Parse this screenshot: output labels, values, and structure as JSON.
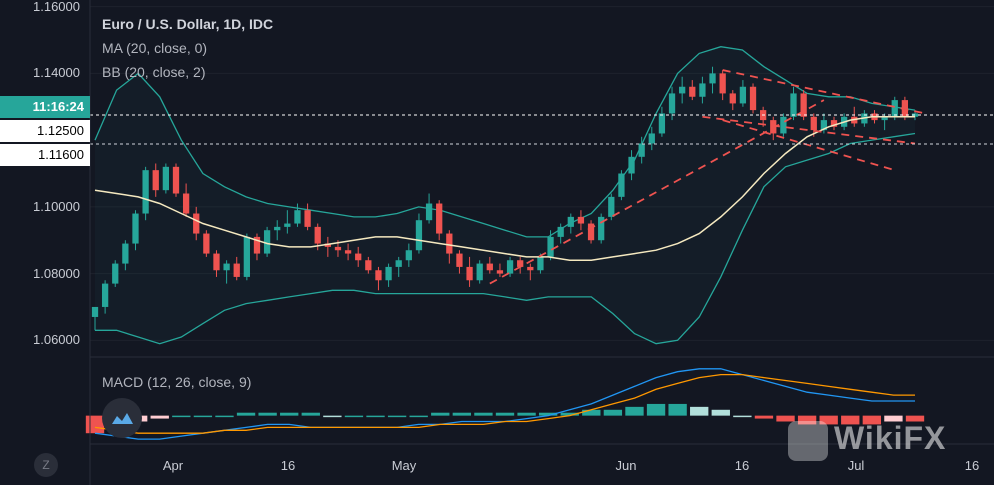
{
  "legend": {
    "title": "Euro / U.S. Dollar, 1D, IDC",
    "ma": "MA (20, close, 0)",
    "bb": "BB (20, close, 2)",
    "macd": "MACD (12, 26, close, 9)"
  },
  "price_axis": {
    "ticks": [
      "1.16000",
      "1.14000",
      "1.10000",
      "1.08000",
      "1.06000"
    ],
    "tick_values": [
      1.16,
      1.14,
      1.1,
      1.08,
      1.06
    ],
    "countdown": "11:16:24",
    "level_1": "1.12500",
    "level_2": "1.11600"
  },
  "time_axis": {
    "ticks": [
      "Apr",
      "16",
      "May",
      "Jun",
      "16",
      "Jul",
      "16"
    ]
  },
  "z_button": "Z",
  "watermark": "WikiFX",
  "colors": {
    "background": "#131722",
    "up": "#26a69a",
    "down": "#ef5350",
    "bb_band": "#26a69a",
    "ma": "#f5e9c0",
    "macd_line": "#2196f3",
    "signal_line": "#ff9800",
    "trendline": "#ef5350"
  },
  "chart_data": [
    {
      "type": "candlestick",
      "title": "Euro / U.S. Dollar, 1D, IDC",
      "ylim": [
        1.055,
        1.162
      ],
      "x_start": "Mar 25",
      "x_end": "Jul 9",
      "candles": [
        [
          1.067,
          1.07,
          1.063,
          1.07
        ],
        [
          1.07,
          1.078,
          1.068,
          1.077
        ],
        [
          1.077,
          1.084,
          1.076,
          1.083
        ],
        [
          1.083,
          1.09,
          1.081,
          1.089
        ],
        [
          1.089,
          1.099,
          1.087,
          1.098
        ],
        [
          1.098,
          1.112,
          1.096,
          1.111
        ],
        [
          1.111,
          1.113,
          1.103,
          1.105
        ],
        [
          1.105,
          1.113,
          1.104,
          1.112
        ],
        [
          1.112,
          1.113,
          1.103,
          1.104
        ],
        [
          1.104,
          1.107,
          1.097,
          1.098
        ],
        [
          1.098,
          1.1,
          1.09,
          1.092
        ],
        [
          1.092,
          1.093,
          1.085,
          1.086
        ],
        [
          1.086,
          1.087,
          1.079,
          1.081
        ],
        [
          1.081,
          1.084,
          1.077,
          1.083
        ],
        [
          1.083,
          1.085,
          1.078,
          1.079
        ],
        [
          1.079,
          1.092,
          1.078,
          1.091
        ],
        [
          1.091,
          1.092,
          1.084,
          1.086
        ],
        [
          1.086,
          1.094,
          1.085,
          1.093
        ],
        [
          1.093,
          1.096,
          1.09,
          1.094
        ],
        [
          1.094,
          1.099,
          1.092,
          1.095
        ],
        [
          1.095,
          1.101,
          1.094,
          1.099
        ],
        [
          1.099,
          1.101,
          1.093,
          1.094
        ],
        [
          1.094,
          1.095,
          1.087,
          1.089
        ],
        [
          1.089,
          1.091,
          1.085,
          1.088
        ],
        [
          1.088,
          1.09,
          1.085,
          1.087
        ],
        [
          1.087,
          1.089,
          1.084,
          1.086
        ],
        [
          1.086,
          1.088,
          1.082,
          1.084
        ],
        [
          1.084,
          1.085,
          1.08,
          1.081
        ],
        [
          1.081,
          1.082,
          1.075,
          1.078
        ],
        [
          1.078,
          1.083,
          1.076,
          1.082
        ],
        [
          1.082,
          1.085,
          1.079,
          1.084
        ],
        [
          1.084,
          1.089,
          1.082,
          1.087
        ],
        [
          1.087,
          1.098,
          1.086,
          1.096
        ],
        [
          1.096,
          1.104,
          1.095,
          1.101
        ],
        [
          1.101,
          1.102,
          1.09,
          1.092
        ],
        [
          1.092,
          1.093,
          1.083,
          1.086
        ],
        [
          1.086,
          1.087,
          1.08,
          1.082
        ],
        [
          1.082,
          1.085,
          1.076,
          1.078
        ],
        [
          1.078,
          1.084,
          1.077,
          1.083
        ],
        [
          1.083,
          1.085,
          1.08,
          1.081
        ],
        [
          1.081,
          1.083,
          1.079,
          1.08
        ],
        [
          1.08,
          1.085,
          1.079,
          1.084
        ],
        [
          1.084,
          1.085,
          1.08,
          1.082
        ],
        [
          1.082,
          1.083,
          1.078,
          1.081
        ],
        [
          1.081,
          1.086,
          1.08,
          1.085
        ],
        [
          1.085,
          1.093,
          1.084,
          1.091
        ],
        [
          1.091,
          1.095,
          1.089,
          1.094
        ],
        [
          1.094,
          1.098,
          1.092,
          1.097
        ],
        [
          1.097,
          1.099,
          1.093,
          1.095
        ],
        [
          1.095,
          1.096,
          1.089,
          1.09
        ],
        [
          1.09,
          1.098,
          1.089,
          1.097
        ],
        [
          1.097,
          1.104,
          1.096,
          1.103
        ],
        [
          1.103,
          1.111,
          1.102,
          1.11
        ],
        [
          1.11,
          1.117,
          1.108,
          1.115
        ],
        [
          1.115,
          1.121,
          1.113,
          1.119
        ],
        [
          1.119,
          1.124,
          1.117,
          1.122
        ],
        [
          1.122,
          1.13,
          1.121,
          1.128
        ],
        [
          1.128,
          1.136,
          1.126,
          1.134
        ],
        [
          1.134,
          1.139,
          1.131,
          1.136
        ],
        [
          1.136,
          1.138,
          1.132,
          1.133
        ],
        [
          1.133,
          1.139,
          1.131,
          1.137
        ],
        [
          1.137,
          1.142,
          1.134,
          1.14
        ],
        [
          1.14,
          1.141,
          1.132,
          1.134
        ],
        [
          1.134,
          1.135,
          1.129,
          1.131
        ],
        [
          1.131,
          1.138,
          1.13,
          1.136
        ],
        [
          1.136,
          1.137,
          1.128,
          1.129
        ],
        [
          1.129,
          1.13,
          1.124,
          1.126
        ],
        [
          1.126,
          1.127,
          1.12,
          1.122
        ],
        [
          1.122,
          1.128,
          1.121,
          1.127
        ],
        [
          1.127,
          1.136,
          1.126,
          1.134
        ],
        [
          1.134,
          1.135,
          1.126,
          1.127
        ],
        [
          1.127,
          1.128,
          1.121,
          1.123
        ],
        [
          1.123,
          1.128,
          1.122,
          1.126
        ],
        [
          1.126,
          1.127,
          1.123,
          1.124
        ],
        [
          1.124,
          1.128,
          1.123,
          1.127
        ],
        [
          1.127,
          1.13,
          1.124,
          1.125
        ],
        [
          1.125,
          1.129,
          1.124,
          1.128
        ],
        [
          1.128,
          1.129,
          1.125,
          1.126
        ],
        [
          1.126,
          1.128,
          1.123,
          1.127
        ],
        [
          1.127,
          1.133,
          1.126,
          1.132
        ],
        [
          1.132,
          1.133,
          1.126,
          1.127
        ],
        [
          1.127,
          1.129,
          1.126,
          1.128
        ]
      ],
      "ma": [
        1.105,
        1.104,
        1.103,
        1.101,
        1.098,
        1.095,
        1.093,
        1.091,
        1.089,
        1.088,
        1.088,
        1.089,
        1.09,
        1.091,
        1.091,
        1.09,
        1.089,
        1.088,
        1.087,
        1.086,
        1.085,
        1.085,
        1.084,
        1.084,
        1.085,
        1.086,
        1.087,
        1.089,
        1.092,
        1.097,
        1.103,
        1.11,
        1.116,
        1.121,
        1.124,
        1.126,
        1.127,
        1.127,
        1.127
      ],
      "bb_upper": [
        1.12,
        1.135,
        1.14,
        1.133,
        1.12,
        1.11,
        1.106,
        1.103,
        1.101,
        1.1,
        1.099,
        1.098,
        1.097,
        1.097,
        1.098,
        1.1,
        1.099,
        1.097,
        1.095,
        1.093,
        1.091,
        1.091,
        1.095,
        1.098,
        1.105,
        1.114,
        1.128,
        1.14,
        1.146,
        1.148,
        1.147,
        1.142,
        1.138,
        1.134,
        1.133,
        1.133,
        1.131,
        1.13,
        1.129
      ],
      "bb_lower": [
        1.063,
        1.063,
        1.061,
        1.059,
        1.061,
        1.065,
        1.069,
        1.071,
        1.072,
        1.073,
        1.074,
        1.075,
        1.075,
        1.074,
        1.074,
        1.074,
        1.074,
        1.074,
        1.074,
        1.073,
        1.072,
        1.073,
        1.073,
        1.073,
        1.068,
        1.062,
        1.059,
        1.06,
        1.067,
        1.079,
        1.093,
        1.106,
        1.112,
        1.114,
        1.116,
        1.119,
        1.12,
        1.121,
        1.122
      ],
      "trendlines": [
        {
          "from": [
            62,
            1.141
          ],
          "to": [
            82,
            1.128
          ]
        },
        {
          "from": [
            60,
            1.127
          ],
          "to": [
            81,
            1.119
          ]
        },
        {
          "from": [
            62,
            1.126
          ],
          "to": [
            79,
            1.111
          ]
        },
        {
          "from": [
            39,
            1.077
          ],
          "to": [
            72,
            1.132
          ]
        }
      ],
      "levels": [
        1.125,
        1.116
      ]
    },
    {
      "type": "line",
      "title": "MACD (12, 26, close, 9)",
      "series": [
        {
          "values": [
            -0.006,
            -0.007,
            -0.008,
            -0.008,
            -0.007,
            -0.006,
            -0.005,
            -0.004,
            -0.003,
            -0.003,
            -0.004,
            -0.004,
            -0.004,
            -0.004,
            -0.004,
            -0.003,
            -0.003,
            -0.002,
            -0.002,
            -0.002,
            -0.001,
            0.0,
            0.002,
            0.004,
            0.007,
            0.01,
            0.013,
            0.015,
            0.016,
            0.016,
            0.014,
            0.012,
            0.01,
            0.008,
            0.007,
            0.006,
            0.005,
            0.005,
            0.005
          ]
        },
        {
          "values": [
            -0.004,
            -0.005,
            -0.006,
            -0.006,
            -0.006,
            -0.006,
            -0.005,
            -0.005,
            -0.004,
            -0.004,
            -0.004,
            -0.004,
            -0.004,
            -0.004,
            -0.004,
            -0.004,
            -0.003,
            -0.003,
            -0.003,
            -0.002,
            -0.002,
            -0.001,
            0.0,
            0.002,
            0.004,
            0.006,
            0.009,
            0.011,
            0.013,
            0.014,
            0.014,
            0.013,
            0.012,
            0.011,
            0.01,
            0.009,
            0.008,
            0.007,
            0.007
          ]
        }
      ],
      "histogram": [
        -0.006,
        -0.004,
        -0.002,
        -0.001,
        0.0,
        0.0,
        0.0,
        0.001,
        0.001,
        0.001,
        0.001,
        0.0,
        0.0,
        0.0,
        0.0,
        0.0,
        0.001,
        0.001,
        0.001,
        0.001,
        0.001,
        0.001,
        0.001,
        0.002,
        0.002,
        0.003,
        0.004,
        0.004,
        0.003,
        0.002,
        0.0,
        -0.001,
        -0.002,
        -0.003,
        -0.003,
        -0.003,
        -0.003,
        -0.002,
        -0.002
      ]
    }
  ]
}
